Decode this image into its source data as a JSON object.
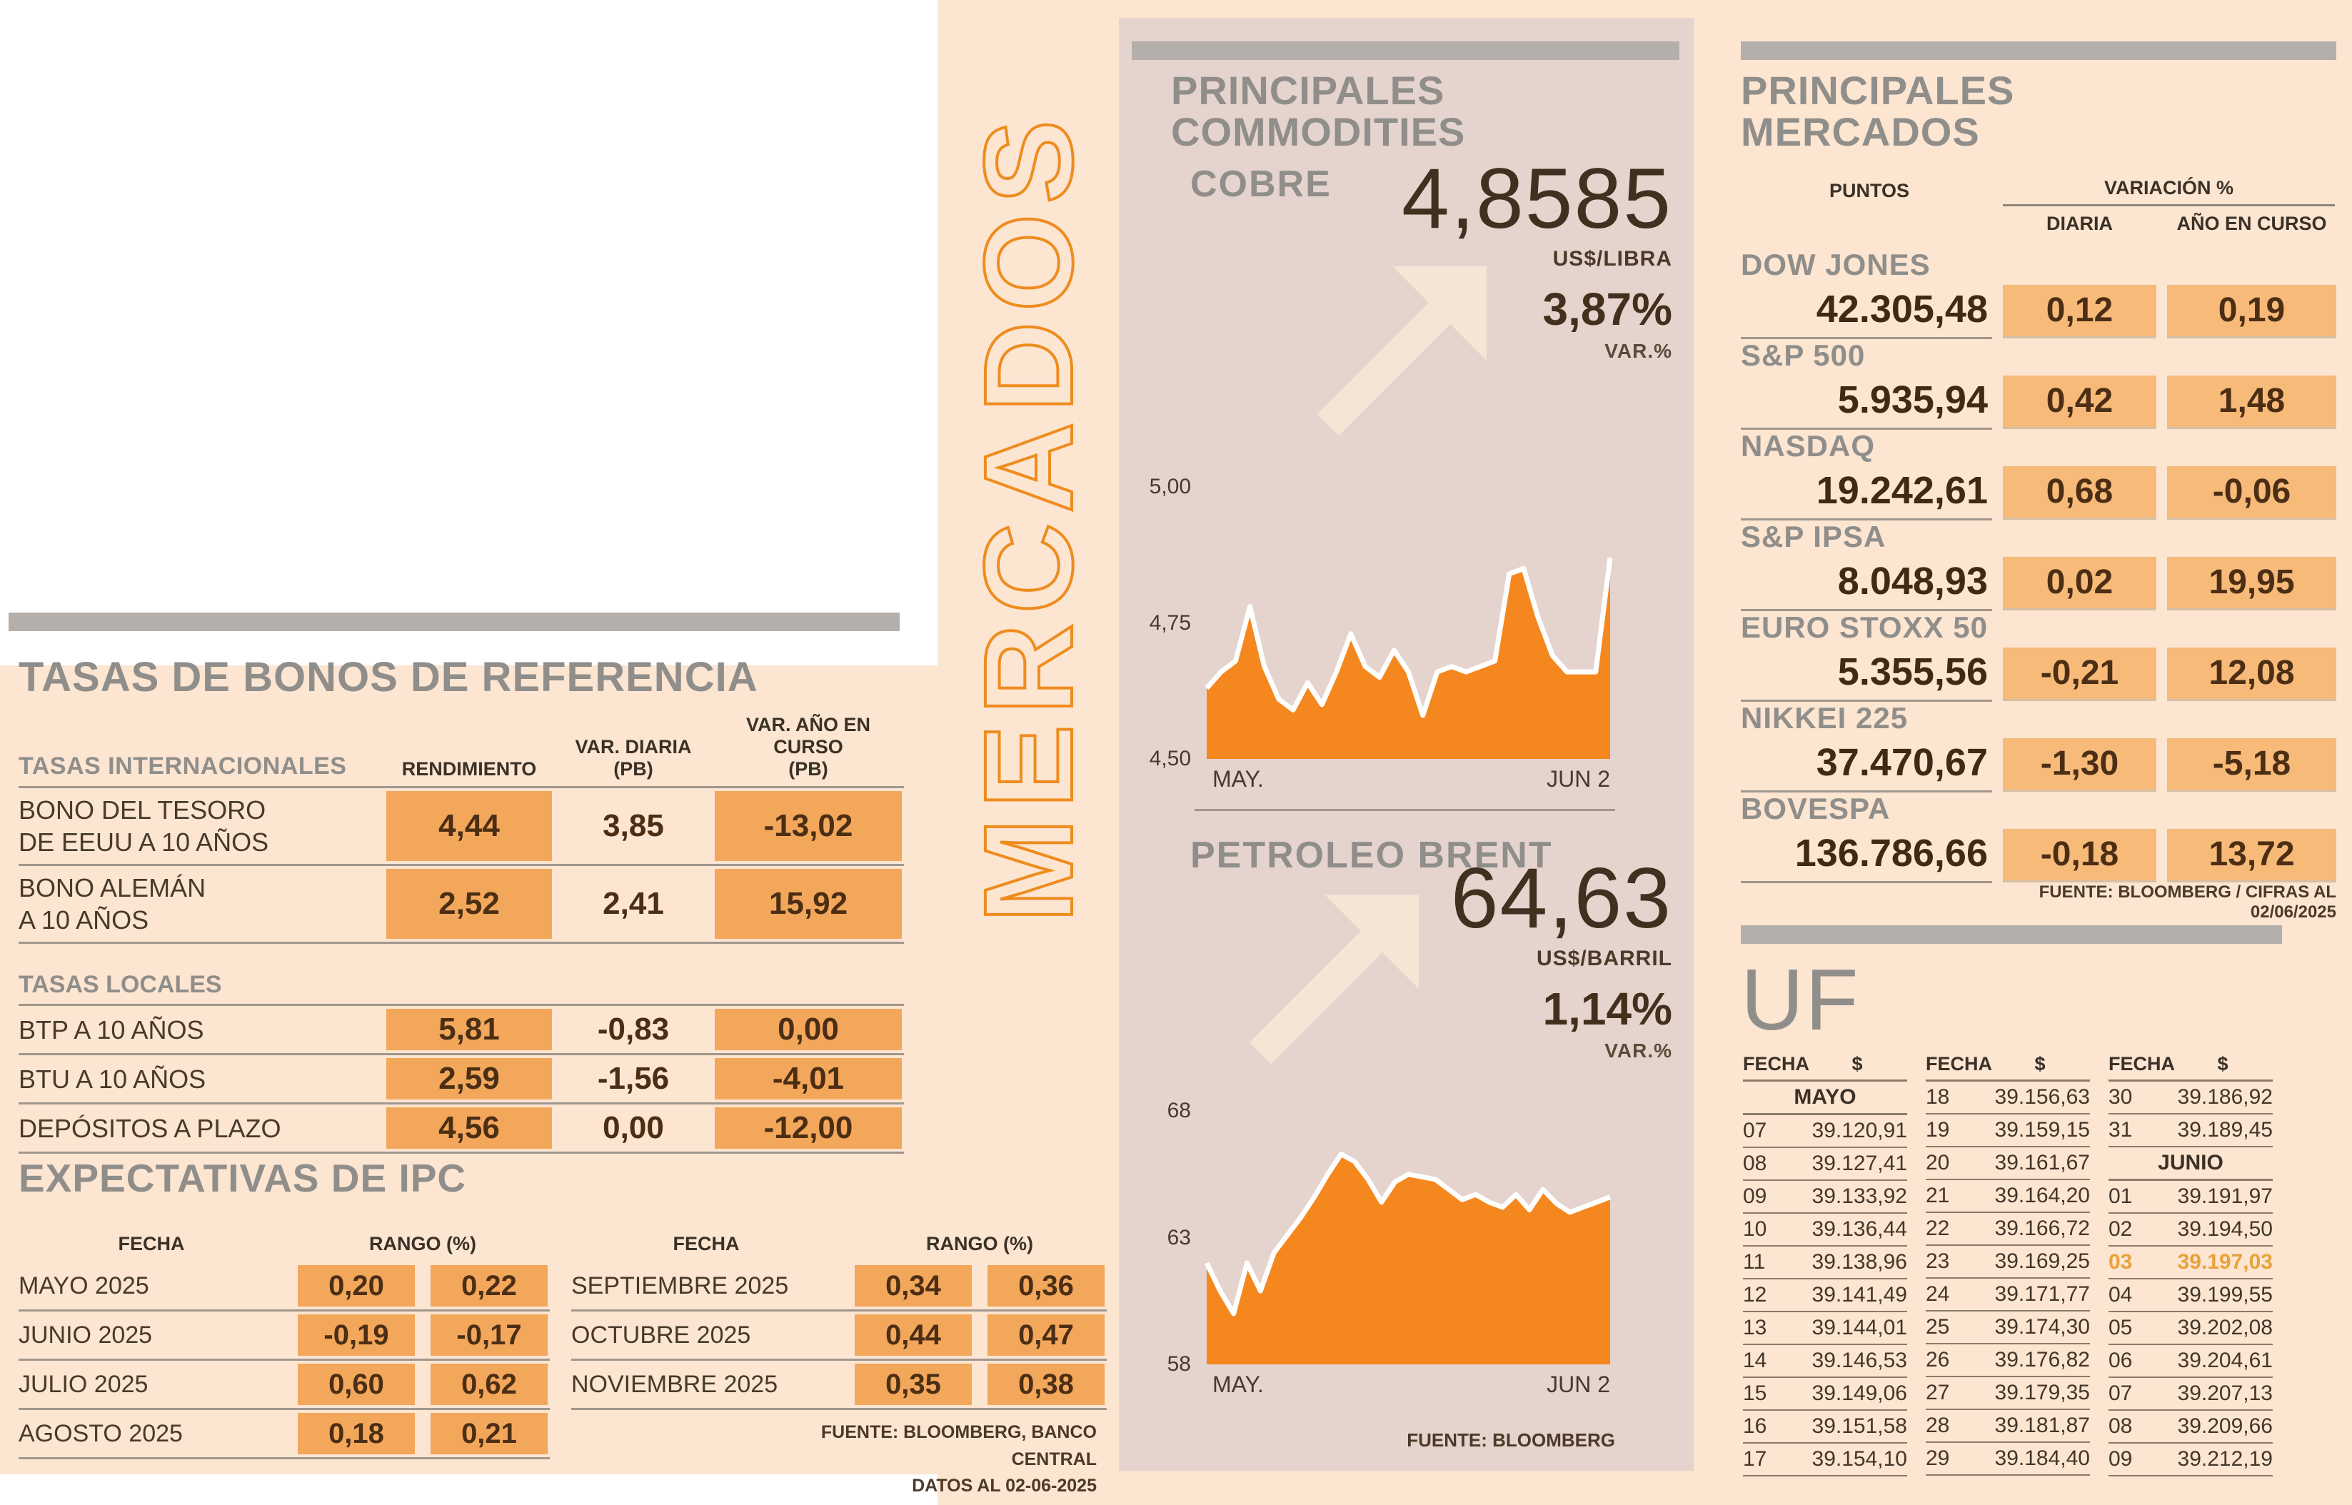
{
  "vertical_title": "MERCADOS",
  "left": {
    "bond_section": {
      "title": "TASAS DE BONOS DE REFERENCIA",
      "col_headers": [
        "RENDIMIENTO",
        "VAR. DIARIA\n(PB)",
        "VAR. AÑO EN CURSO\n(PB)"
      ],
      "groups": [
        {
          "label": "TASAS INTERNACIONALES",
          "rows": [
            {
              "label": "BONO DEL TESORO\nDE EEUU A 10 AÑOS",
              "values": [
                "4,44",
                "3,85",
                "-13,02"
              ]
            },
            {
              "label": "BONO ALEMÁN\nA 10 AÑOS",
              "values": [
                "2,52",
                "2,41",
                "15,92"
              ]
            }
          ]
        },
        {
          "label": "TASAS LOCALES",
          "rows": [
            {
              "label": "BTP A 10 AÑOS",
              "values": [
                "5,81",
                "-0,83",
                "0,00"
              ]
            },
            {
              "label": "BTU A 10 AÑOS",
              "values": [
                "2,59",
                "-1,56",
                "-4,01"
              ]
            },
            {
              "label": "DEPÓSITOS A PLAZO",
              "values": [
                "4,56",
                "0,00",
                "-12,00"
              ]
            }
          ]
        }
      ]
    },
    "ipc_section": {
      "title": "EXPECTATIVAS DE IPC",
      "fecha_header": "FECHA",
      "rango_header": "RANGO (%)",
      "table_left": [
        {
          "label": "MAYO 2025",
          "values": [
            "0,20",
            "0,22"
          ]
        },
        {
          "label": "JUNIO 2025",
          "values": [
            "-0,19",
            "-0,17"
          ]
        },
        {
          "label": "JULIO 2025",
          "values": [
            "0,60",
            "0,62"
          ]
        },
        {
          "label": "AGOSTO 2025",
          "values": [
            "0,18",
            "0,21"
          ]
        }
      ],
      "table_right": [
        {
          "label": "SEPTIEMBRE 2025",
          "values": [
            "0,34",
            "0,36"
          ]
        },
        {
          "label": "OCTUBRE 2025",
          "values": [
            "0,44",
            "0,47"
          ]
        },
        {
          "label": "NOVIEMBRE 2025",
          "values": [
            "0,35",
            "0,38"
          ]
        }
      ],
      "source_line1": "FUENTE: BLOOMBERG, BANCO CENTRAL",
      "source_line2": "DATOS AL 02-06-2025"
    }
  },
  "commodities": {
    "title": "PRINCIPALES\nCOMMODITIES",
    "items": [
      {
        "name": "COBRE",
        "price": "4,8585",
        "unit": "US$/LIBRA",
        "change": "3,87%",
        "change_label": "VAR.%"
      },
      {
        "name": "PETROLEO BRENT",
        "price": "64,63",
        "unit": "US$/BARRIL",
        "change": "1,14%",
        "change_label": "VAR.%"
      }
    ],
    "source": "FUENTE: BLOOMBERG"
  },
  "chart_data": [
    {
      "type": "area",
      "title": "COBRE",
      "ylabel": "US$/LIBRA",
      "ylim": [
        4.5,
        5.0
      ],
      "yticks": [
        {
          "v": 5.0,
          "label": "5,00"
        },
        {
          "v": 4.75,
          "label": "4,75"
        },
        {
          "v": 4.5,
          "label": "4,50"
        }
      ],
      "x_labels": [
        "MAY.",
        "JUN 2"
      ],
      "grid": false,
      "values": [
        4.63,
        4.66,
        4.68,
        4.78,
        4.67,
        4.61,
        4.59,
        4.64,
        4.6,
        4.66,
        4.73,
        4.67,
        4.65,
        4.7,
        4.66,
        4.58,
        4.66,
        4.67,
        4.66,
        4.67,
        4.68,
        4.84,
        4.85,
        4.76,
        4.69,
        4.66,
        4.66,
        4.66,
        4.87
      ]
    },
    {
      "type": "area",
      "title": "PETROLEO BRENT",
      "ylabel": "US$/BARRIL",
      "ylim": [
        58,
        68
      ],
      "yticks": [
        {
          "v": 68,
          "label": "68"
        },
        {
          "v": 63,
          "label": "63"
        },
        {
          "v": 58,
          "label": "58"
        }
      ],
      "x_labels": [
        "MAY.",
        "JUN 2"
      ],
      "grid": false,
      "values": [
        62.0,
        60.9,
        60.0,
        62.0,
        60.9,
        62.4,
        63.1,
        63.8,
        64.6,
        65.5,
        66.3,
        66.0,
        65.3,
        64.4,
        65.2,
        65.5,
        65.4,
        65.3,
        64.9,
        64.5,
        64.7,
        64.4,
        64.2,
        64.7,
        64.1,
        64.9,
        64.35,
        64.0,
        64.2,
        64.4,
        64.6
      ]
    }
  ],
  "markets": {
    "title": "PRINCIPALES\nMERCADOS",
    "col_headers": {
      "puntos": "PUNTOS",
      "variacion": "VARIACIÓN %",
      "diaria": "DIARIA",
      "ano": "AÑO EN CURSO"
    },
    "indices": [
      {
        "name": "DOW JONES",
        "points": "42.305,48",
        "daily": "0,12",
        "ytd": "0,19"
      },
      {
        "name": "S&P 500",
        "points": "5.935,94",
        "daily": "0,42",
        "ytd": "1,48"
      },
      {
        "name": "NASDAQ",
        "points": "19.242,61",
        "daily": "0,68",
        "ytd": "-0,06"
      },
      {
        "name": "S&P IPSA",
        "points": "8.048,93",
        "daily": "0,02",
        "ytd": "19,95"
      },
      {
        "name": "EURO STOXX 50",
        "points": "5.355,56",
        "daily": "-0,21",
        "ytd": "12,08"
      },
      {
        "name": "NIKKEI 225",
        "points": "37.470,67",
        "daily": "-1,30",
        "ytd": "-5,18"
      },
      {
        "name": "BOVESPA",
        "points": "136.786,66",
        "daily": "-0,18",
        "ytd": "13,72"
      }
    ],
    "source": "FUENTE: BLOOMBERG  / CIFRAS AL 02/06/2025"
  },
  "uf": {
    "title": "UF",
    "fecha_header": "FECHA",
    "valor_header": "$",
    "columns": [
      {
        "rows": [
          {
            "type": "month",
            "label": "MAYO"
          },
          {
            "type": "day",
            "fecha": "07",
            "valor": "39.120,91"
          },
          {
            "type": "day",
            "fecha": "08",
            "valor": "39.127,41"
          },
          {
            "type": "day",
            "fecha": "09",
            "valor": "39.133,92"
          },
          {
            "type": "day",
            "fecha": "10",
            "valor": "39.136,44"
          },
          {
            "type": "day",
            "fecha": "11",
            "valor": "39.138,96"
          },
          {
            "type": "day",
            "fecha": "12",
            "valor": "39.141,49"
          },
          {
            "type": "day",
            "fecha": "13",
            "valor": "39.144,01"
          },
          {
            "type": "day",
            "fecha": "14",
            "valor": "39.146,53"
          },
          {
            "type": "day",
            "fecha": "15",
            "valor": "39.149,06"
          },
          {
            "type": "day",
            "fecha": "16",
            "valor": "39.151,58"
          },
          {
            "type": "day",
            "fecha": "17",
            "valor": "39.154,10"
          }
        ]
      },
      {
        "rows": [
          {
            "type": "day",
            "fecha": "18",
            "valor": "39.156,63"
          },
          {
            "type": "day",
            "fecha": "19",
            "valor": "39.159,15"
          },
          {
            "type": "day",
            "fecha": "20",
            "valor": "39.161,67"
          },
          {
            "type": "day",
            "fecha": "21",
            "valor": "39.164,20"
          },
          {
            "type": "day",
            "fecha": "22",
            "valor": "39.166,72"
          },
          {
            "type": "day",
            "fecha": "23",
            "valor": "39.169,25"
          },
          {
            "type": "day",
            "fecha": "24",
            "valor": "39.171,77"
          },
          {
            "type": "day",
            "fecha": "25",
            "valor": "39.174,30"
          },
          {
            "type": "day",
            "fecha": "26",
            "valor": "39.176,82"
          },
          {
            "type": "day",
            "fecha": "27",
            "valor": "39.179,35"
          },
          {
            "type": "day",
            "fecha": "28",
            "valor": "39.181,87"
          },
          {
            "type": "day",
            "fecha": "29",
            "valor": "39.184,40"
          }
        ]
      },
      {
        "rows": [
          {
            "type": "day",
            "fecha": "30",
            "valor": "39.186,92"
          },
          {
            "type": "day",
            "fecha": "31",
            "valor": "39.189,45"
          },
          {
            "type": "month",
            "label": "JUNIO"
          },
          {
            "type": "day",
            "fecha": "01",
            "valor": "39.191,97"
          },
          {
            "type": "day",
            "fecha": "02",
            "valor": "39.194,50"
          },
          {
            "type": "day",
            "fecha": "03",
            "valor": "39.197,03",
            "highlight": true
          },
          {
            "type": "day",
            "fecha": "04",
            "valor": "39.199,55"
          },
          {
            "type": "day",
            "fecha": "05",
            "valor": "39.202,08"
          },
          {
            "type": "day",
            "fecha": "06",
            "valor": "39.204,61"
          },
          {
            "type": "day",
            "fecha": "07",
            "valor": "39.207,13"
          },
          {
            "type": "day",
            "fecha": "08",
            "valor": "39.209,66"
          },
          {
            "type": "day",
            "fecha": "09",
            "valor": "39.212,19"
          }
        ]
      }
    ]
  },
  "colors": {
    "accent_orange": "#f5871f",
    "cell_orange": "#f3a75b",
    "cell_orange_light": "#f7ba79",
    "peach_background": "#fce5d1",
    "panel_background": "#e5d3ce",
    "bar_gray": "#b4afaa",
    "title_gray": "#908e8a",
    "uf_highlight": "#e8a23c"
  }
}
